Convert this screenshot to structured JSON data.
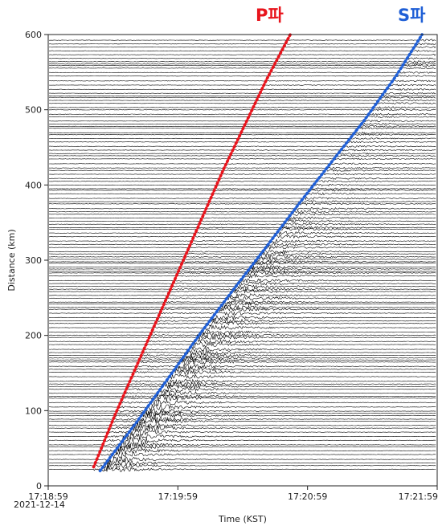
{
  "chart_data": {
    "type": "line",
    "title": "",
    "xlabel": "Time (KST)",
    "ylabel": "Distance (km)",
    "date_label": "2021-12-14",
    "xlim": [
      "17:18:59",
      "17:21:59"
    ],
    "ylim": [
      0,
      600
    ],
    "x_ticks": [
      "17:18:59",
      "17:19:59",
      "17:20:59",
      "17:21:59"
    ],
    "y_ticks": [
      0,
      100,
      200,
      300,
      400,
      500,
      600
    ],
    "series": [
      {
        "name": "P파",
        "color": "#e8141c",
        "style": "dotted",
        "x": [
          "17:19:20",
          "17:19:30",
          "17:19:40",
          "17:19:50",
          "17:20:00",
          "17:20:10",
          "17:20:20",
          "17:20:30",
          "17:20:40",
          "17:20:51"
        ],
        "y": [
          25,
          95,
          160,
          225,
          290,
          355,
          420,
          480,
          540,
          600
        ]
      },
      {
        "name": "S파",
        "color": "#1f5fd6",
        "style": "dotted",
        "x": [
          "17:19:23",
          "17:19:40",
          "17:19:55",
          "17:20:10",
          "17:20:25",
          "17:20:40",
          "17:20:55",
          "17:21:10",
          "17:21:25",
          "17:21:40",
          "17:21:52"
        ],
        "y": [
          20,
          85,
          145,
          205,
          262,
          318,
          375,
          430,
          485,
          545,
          600
        ]
      }
    ],
    "colors": {
      "traces": "#000000",
      "p_wave": "#e8141c",
      "s_wave": "#1f5fd6"
    }
  }
}
